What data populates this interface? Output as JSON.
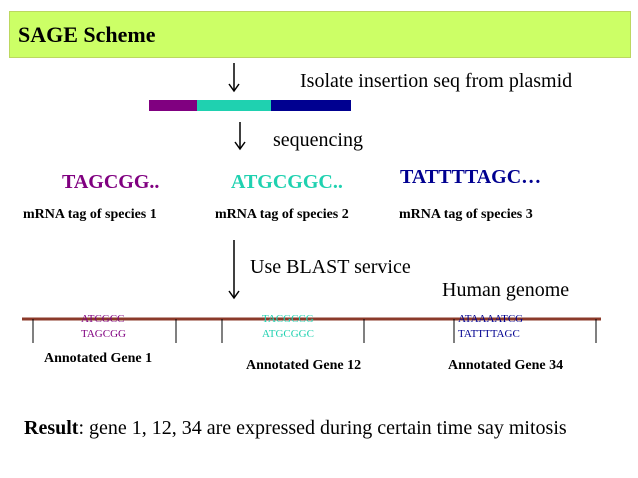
{
  "title": "SAGE Scheme",
  "steps": {
    "isolate": "Isolate insertion seq from plasmid",
    "sequencing": "sequencing",
    "blast": "Use BLAST service"
  },
  "plasmid_colors": [
    "#800080",
    "#1fd1b0",
    "#000090"
  ],
  "tags": [
    {
      "seq": "TAGCGG..",
      "label": "mRNA tag of species 1",
      "color": "#800080"
    },
    {
      "seq": "ATGCGGC..",
      "label": "mRNA tag of species 2",
      "color": "#1fd1b0"
    },
    {
      "seq": "TATTTTAGC…",
      "label": "mRNA tag of species 3",
      "color": "#000090"
    }
  ],
  "genome_label": "Human genome",
  "genes": [
    {
      "seq_top": "ATCGCC",
      "seq_bottom": "TAGCGG",
      "label": "Annotated Gene 1",
      "color": "#800080"
    },
    {
      "seq_top": "TACGCCG",
      "seq_bottom": "ATGCGGC",
      "label": "Annotated Gene 12",
      "color": "#1fd1b0"
    },
    {
      "seq_top": "ATAAAATCG",
      "seq_bottom": "TATTTTAGC",
      "label": "Annotated Gene 34",
      "color": "#000090"
    }
  ],
  "result": {
    "label": "Result",
    "text": ": gene 1, 12, 34 are expressed during certain time say mitosis"
  }
}
